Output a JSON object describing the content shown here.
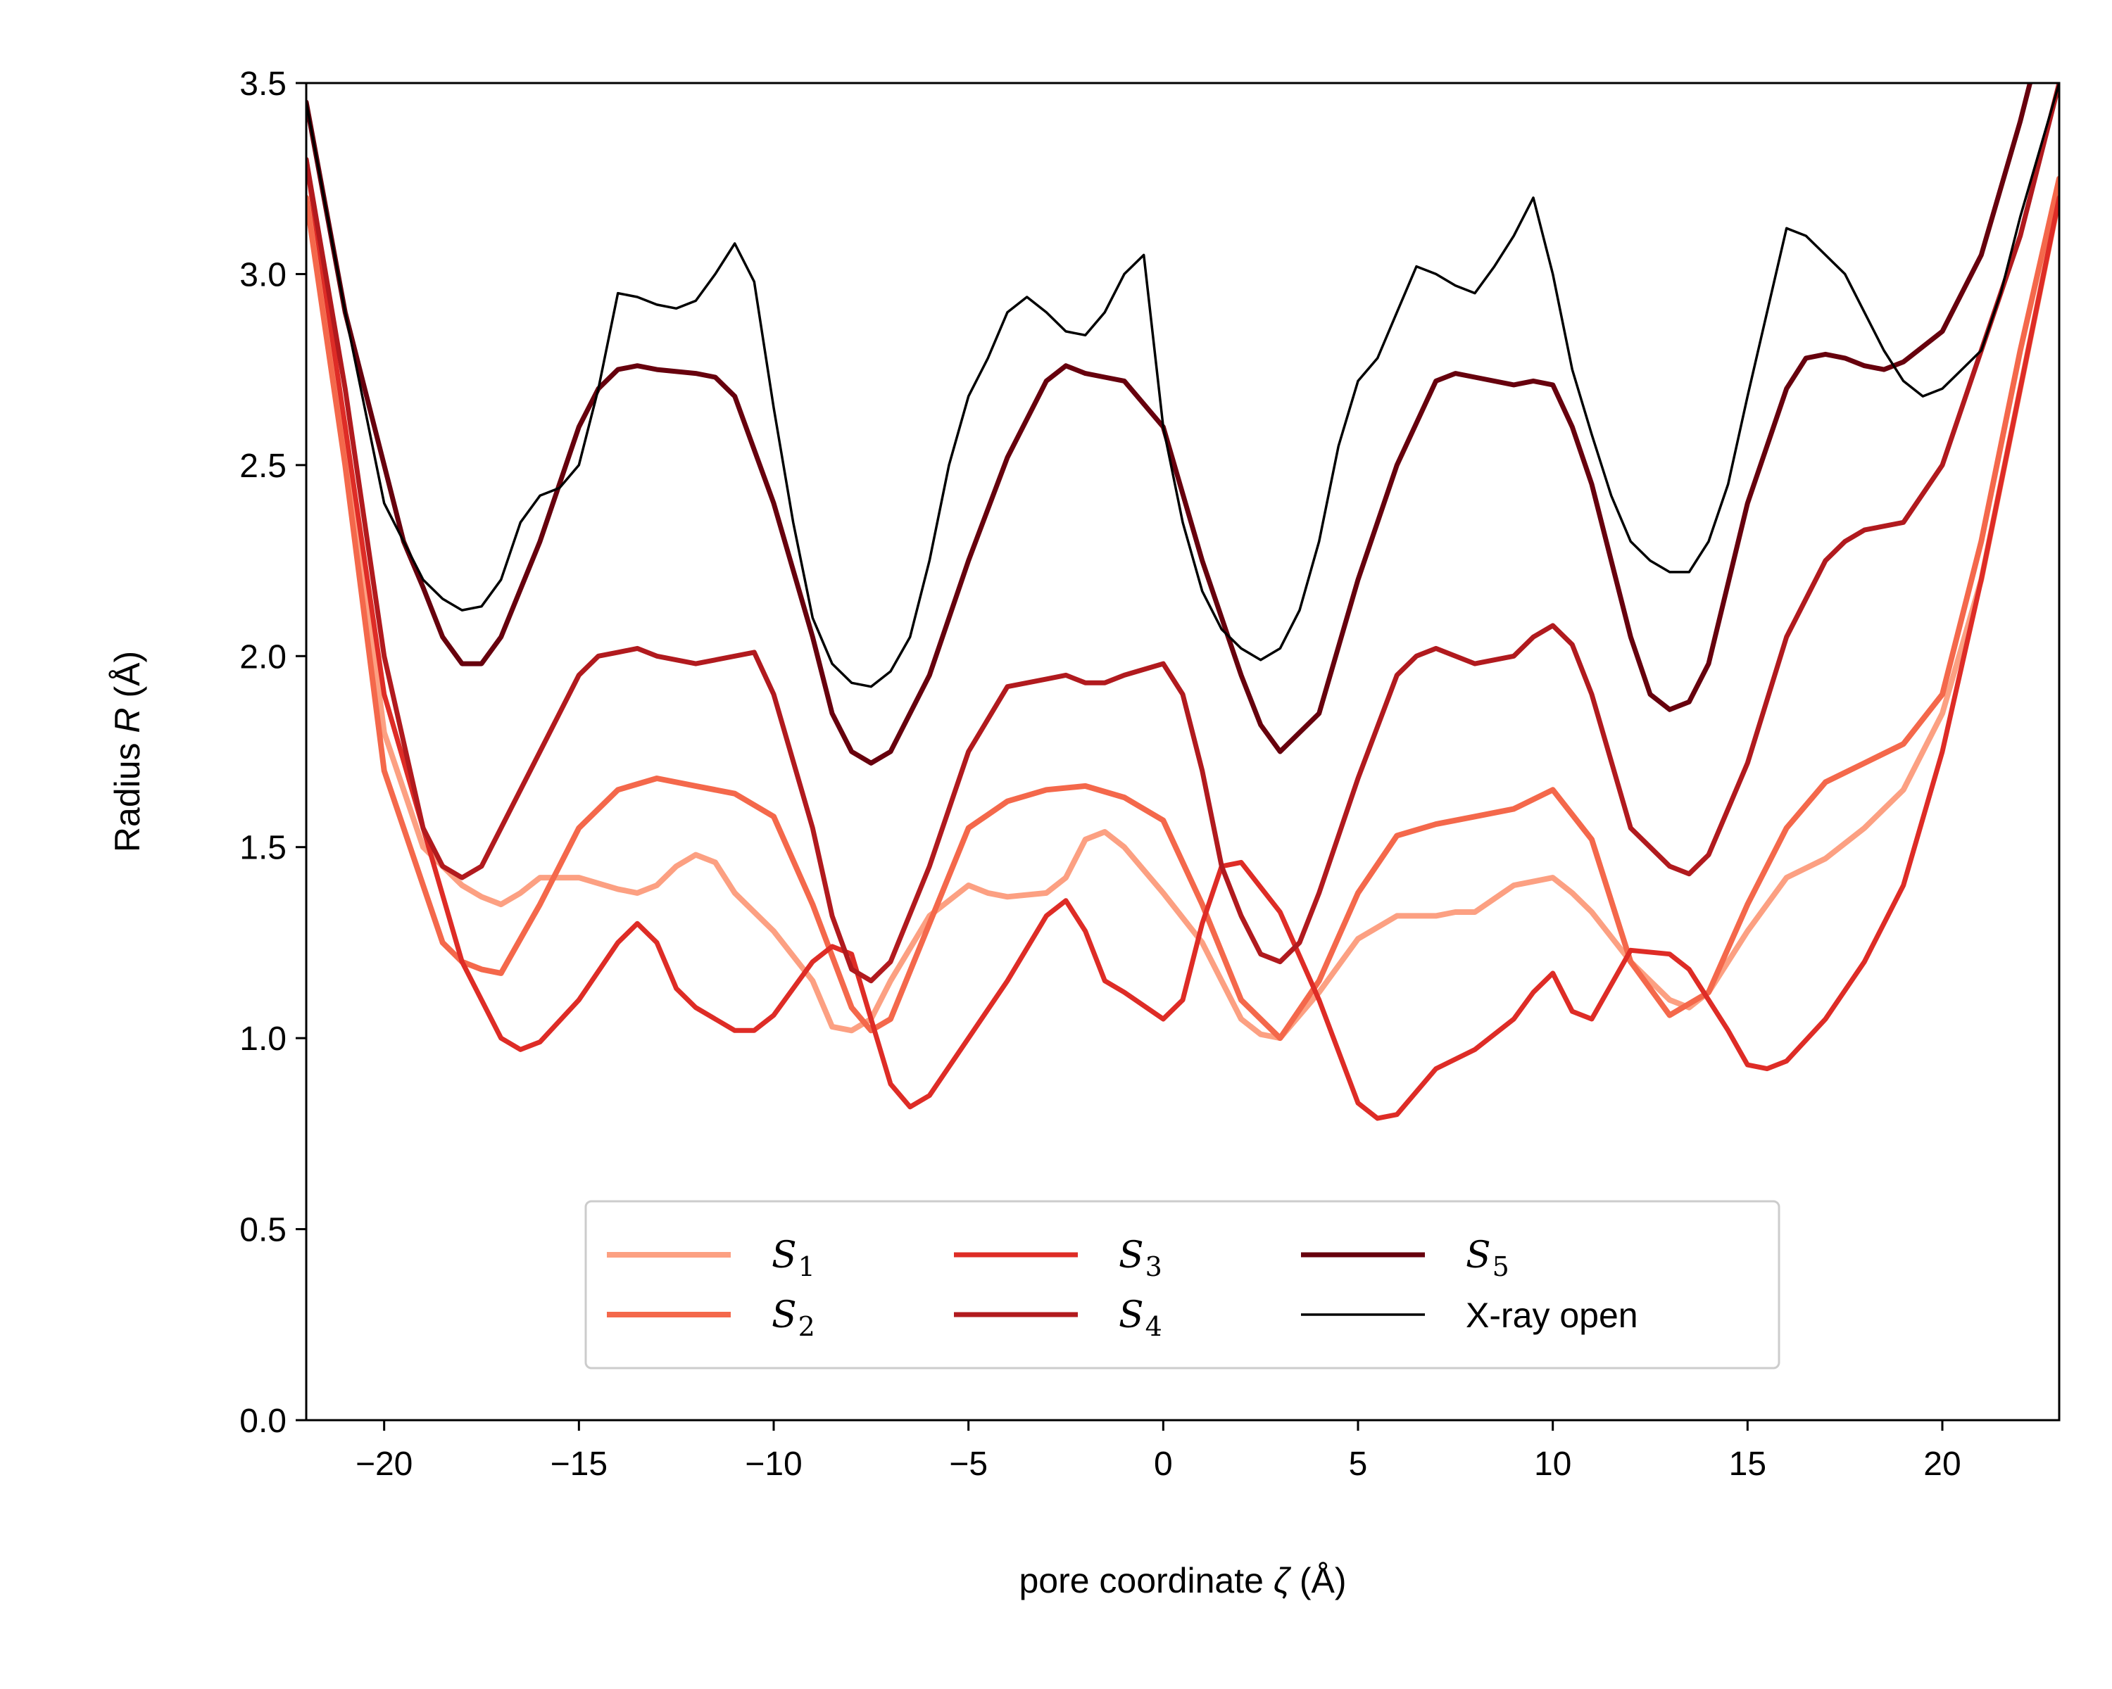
{
  "chart_data": {
    "type": "line",
    "xlabel": {
      "prefix": "pore coordinate ",
      "symbol": "ζ",
      "suffix": " (Å)"
    },
    "ylabel": {
      "prefix": "Radius ",
      "symbol": "R",
      "suffix": " (Å)"
    },
    "xlim": [
      -22,
      23
    ],
    "ylim": [
      0,
      3.5
    ],
    "xticks": [
      -20,
      -15,
      -10,
      -5,
      0,
      5,
      10,
      15,
      20
    ],
    "xtick_labels": [
      "−20",
      "−15",
      "−10",
      "−5",
      "0",
      "5",
      "10",
      "15",
      "20"
    ],
    "yticks": [
      0,
      0.5,
      1.0,
      1.5,
      2.0,
      2.5,
      3.0,
      3.5
    ],
    "ytick_labels": [
      "0.0",
      "0.5",
      "1.0",
      "1.5",
      "2.0",
      "2.5",
      "3.0",
      "3.5"
    ],
    "grid": false,
    "legend": {
      "placement": "lower-center",
      "columns": 3
    },
    "series": [
      {
        "name": "S1",
        "label_main": "S",
        "label_sub": "1",
        "color": "#fca082",
        "x": [
          -22,
          -21,
          -20,
          -19,
          -18,
          -17.5,
          -17,
          -16.5,
          -16,
          -15,
          -14,
          -13.5,
          -13,
          -12.5,
          -12,
          -11.5,
          -11,
          -10,
          -9,
          -8.5,
          -8,
          -7.5,
          -7,
          -6,
          -5,
          -4.5,
          -4,
          -3,
          -2.5,
          -2,
          -1.5,
          -1,
          0,
          1,
          1.5,
          2,
          2.5,
          3,
          4,
          5,
          6,
          7,
          7.5,
          8,
          9,
          10,
          10.5,
          11,
          12,
          13,
          13.5,
          14,
          15,
          16,
          17,
          18,
          19,
          20,
          21,
          22,
          23
        ],
        "y": [
          3.2,
          2.6,
          1.8,
          1.5,
          1.4,
          1.37,
          1.35,
          1.38,
          1.42,
          1.42,
          1.39,
          1.38,
          1.4,
          1.45,
          1.48,
          1.46,
          1.38,
          1.28,
          1.15,
          1.03,
          1.02,
          1.05,
          1.15,
          1.32,
          1.4,
          1.38,
          1.37,
          1.38,
          1.42,
          1.52,
          1.54,
          1.5,
          1.38,
          1.25,
          1.15,
          1.05,
          1.01,
          1.0,
          1.12,
          1.26,
          1.32,
          1.32,
          1.33,
          1.33,
          1.4,
          1.42,
          1.38,
          1.33,
          1.2,
          1.1,
          1.08,
          1.12,
          1.28,
          1.42,
          1.47,
          1.55,
          1.65,
          1.85,
          2.2,
          2.7,
          3.2
        ]
      },
      {
        "name": "S2",
        "label_main": "S",
        "label_sub": "2",
        "color": "#f4684b",
        "x": [
          -22,
          -21,
          -20,
          -19,
          -18.5,
          -18,
          -17.5,
          -17,
          -16,
          -15,
          -14,
          -13,
          -12,
          -11,
          -10,
          -9,
          -8,
          -7.5,
          -7,
          -6,
          -5,
          -4,
          -3,
          -2,
          -1,
          0,
          1,
          2,
          3,
          4,
          5,
          6,
          7,
          8,
          9,
          10,
          11,
          12,
          13,
          14,
          15,
          16,
          17,
          18,
          19,
          20,
          21,
          22,
          23
        ],
        "y": [
          3.2,
          2.5,
          1.7,
          1.4,
          1.25,
          1.2,
          1.18,
          1.17,
          1.35,
          1.55,
          1.65,
          1.68,
          1.66,
          1.64,
          1.58,
          1.35,
          1.08,
          1.02,
          1.05,
          1.3,
          1.55,
          1.62,
          1.65,
          1.66,
          1.63,
          1.57,
          1.35,
          1.1,
          1.0,
          1.15,
          1.38,
          1.53,
          1.56,
          1.58,
          1.6,
          1.65,
          1.52,
          1.2,
          1.06,
          1.12,
          1.35,
          1.55,
          1.67,
          1.72,
          1.77,
          1.9,
          2.3,
          2.8,
          3.25
        ]
      },
      {
        "name": "S3",
        "label_main": "S",
        "label_sub": "3",
        "color": "#de2c26",
        "x": [
          -22,
          -21,
          -20,
          -19,
          -18,
          -17,
          -16.5,
          -16,
          -15,
          -14,
          -13.5,
          -13,
          -12.5,
          -12,
          -11,
          -10.5,
          -10,
          -9,
          -8.5,
          -8,
          -7.5,
          -7,
          -6.5,
          -6,
          -5,
          -4,
          -3,
          -2.5,
          -2,
          -1.5,
          -1,
          0,
          0.5,
          1,
          1.5,
          2,
          3,
          4,
          5,
          5.5,
          6,
          7,
          8,
          9,
          9.5,
          10,
          10.5,
          11,
          12,
          13,
          13.5,
          14,
          14.5,
          15,
          15.5,
          16,
          17,
          18,
          19,
          20,
          21,
          22,
          23
        ],
        "y": [
          3.3,
          2.6,
          1.9,
          1.55,
          1.2,
          1.0,
          0.97,
          0.99,
          1.1,
          1.25,
          1.3,
          1.25,
          1.13,
          1.08,
          1.02,
          1.02,
          1.06,
          1.2,
          1.24,
          1.22,
          1.05,
          0.88,
          0.82,
          0.85,
          1.0,
          1.15,
          1.32,
          1.36,
          1.28,
          1.15,
          1.12,
          1.05,
          1.1,
          1.3,
          1.45,
          1.46,
          1.33,
          1.1,
          0.83,
          0.79,
          0.8,
          0.92,
          0.97,
          1.05,
          1.12,
          1.17,
          1.07,
          1.05,
          1.23,
          1.22,
          1.18,
          1.1,
          1.02,
          0.93,
          0.92,
          0.94,
          1.05,
          1.2,
          1.4,
          1.75,
          2.2,
          2.7,
          3.2
        ]
      },
      {
        "name": "S4",
        "label_main": "S",
        "label_sub": "4",
        "color": "#b11a1e",
        "x": [
          -22,
          -21,
          -20,
          -19,
          -18.5,
          -18,
          -17.5,
          -17,
          -16,
          -15,
          -14.5,
          -14,
          -13.5,
          -13,
          -12,
          -11,
          -10.5,
          -10,
          -9,
          -8.5,
          -8,
          -7.5,
          -7,
          -6,
          -5,
          -4,
          -3,
          -2.5,
          -2,
          -1.5,
          -1,
          0,
          0.5,
          1,
          1.5,
          2,
          2.5,
          3,
          3.5,
          4,
          5,
          6,
          6.5,
          7,
          7.5,
          8,
          9,
          9.5,
          10,
          10.5,
          11,
          12,
          13,
          13.5,
          14,
          14.5,
          15,
          16,
          17,
          17.5,
          18,
          19,
          20,
          21,
          22,
          23
        ],
        "y": [
          3.3,
          2.7,
          2.0,
          1.55,
          1.45,
          1.42,
          1.45,
          1.55,
          1.75,
          1.95,
          2.0,
          2.01,
          2.02,
          2.0,
          1.98,
          2.0,
          2.01,
          1.9,
          1.55,
          1.32,
          1.18,
          1.15,
          1.2,
          1.45,
          1.75,
          1.92,
          1.94,
          1.95,
          1.93,
          1.93,
          1.95,
          1.98,
          1.9,
          1.7,
          1.45,
          1.32,
          1.22,
          1.2,
          1.25,
          1.38,
          1.68,
          1.95,
          2.0,
          2.02,
          2.0,
          1.98,
          2.0,
          2.05,
          2.08,
          2.03,
          1.9,
          1.55,
          1.45,
          1.43,
          1.48,
          1.6,
          1.72,
          2.05,
          2.25,
          2.3,
          2.33,
          2.35,
          2.5,
          2.8,
          3.1,
          3.5
        ]
      },
      {
        "name": "S5",
        "label_main": "S",
        "label_sub": "5",
        "color": "#67000d",
        "x": [
          -22,
          -21,
          -20,
          -19.5,
          -19,
          -18.5,
          -18,
          -17.5,
          -17,
          -16,
          -15,
          -14.5,
          -14,
          -13.5,
          -13,
          -12,
          -11.5,
          -11,
          -10,
          -9,
          -8.5,
          -8,
          -7.5,
          -7,
          -6,
          -5,
          -4,
          -3,
          -2.5,
          -2,
          -1.5,
          -1,
          0,
          1,
          2,
          2.5,
          3,
          4,
          5,
          6,
          7,
          7.5,
          8,
          9,
          9.5,
          10,
          10.5,
          11,
          12,
          12.5,
          13,
          13.5,
          14,
          15,
          16,
          16.5,
          17,
          17.5,
          18,
          18.5,
          19,
          20,
          21,
          22,
          23
        ],
        "y": [
          3.45,
          2.9,
          2.5,
          2.3,
          2.18,
          2.05,
          1.98,
          1.98,
          2.05,
          2.3,
          2.6,
          2.7,
          2.75,
          2.76,
          2.75,
          2.74,
          2.73,
          2.68,
          2.4,
          2.05,
          1.85,
          1.75,
          1.72,
          1.75,
          1.95,
          2.25,
          2.52,
          2.72,
          2.76,
          2.74,
          2.73,
          2.72,
          2.6,
          2.25,
          1.95,
          1.82,
          1.75,
          1.85,
          2.2,
          2.5,
          2.72,
          2.74,
          2.73,
          2.71,
          2.72,
          2.71,
          2.6,
          2.45,
          2.05,
          1.9,
          1.86,
          1.88,
          1.98,
          2.4,
          2.7,
          2.78,
          2.79,
          2.78,
          2.76,
          2.75,
          2.77,
          2.85,
          3.05,
          3.4,
          3.8
        ]
      },
      {
        "name": "X-ray open",
        "label_main": "X-ray open",
        "label_sub": "",
        "color": "#000000",
        "x": [
          -22,
          -21,
          -20,
          -19,
          -18.5,
          -18,
          -17.5,
          -17,
          -16.5,
          -16,
          -15.5,
          -15,
          -14.5,
          -14,
          -13.5,
          -13,
          -12.5,
          -12,
          -11.5,
          -11,
          -10.5,
          -10,
          -9.5,
          -9,
          -8.5,
          -8,
          -7.5,
          -7,
          -6.5,
          -6,
          -5.5,
          -5,
          -4.5,
          -4,
          -3.5,
          -3,
          -2.5,
          -2,
          -1.5,
          -1,
          -0.5,
          0,
          0.5,
          1,
          1.5,
          2,
          2.5,
          3,
          3.5,
          4,
          4.5,
          5,
          5.5,
          6,
          6.5,
          7,
          7.5,
          8,
          8.5,
          9,
          9.5,
          10,
          10.5,
          11,
          11.5,
          12,
          12.5,
          13,
          13.5,
          14,
          14.5,
          15,
          15.5,
          16,
          16.5,
          17,
          17.5,
          18,
          18.5,
          19,
          19.5,
          20,
          20.5,
          21,
          21.5,
          22,
          23
        ],
        "y": [
          3.45,
          2.9,
          2.4,
          2.2,
          2.15,
          2.12,
          2.13,
          2.2,
          2.35,
          2.42,
          2.44,
          2.5,
          2.7,
          2.95,
          2.94,
          2.92,
          2.91,
          2.93,
          3.0,
          3.08,
          2.98,
          2.65,
          2.35,
          2.1,
          1.98,
          1.93,
          1.92,
          1.96,
          2.05,
          2.25,
          2.5,
          2.68,
          2.78,
          2.9,
          2.94,
          2.9,
          2.85,
          2.84,
          2.9,
          3.0,
          3.05,
          2.6,
          2.35,
          2.17,
          2.07,
          2.02,
          1.99,
          2.02,
          2.12,
          2.3,
          2.55,
          2.72,
          2.78,
          2.9,
          3.02,
          3.0,
          2.97,
          2.95,
          3.02,
          3.1,
          3.2,
          3.0,
          2.75,
          2.58,
          2.42,
          2.3,
          2.25,
          2.22,
          2.22,
          2.3,
          2.45,
          2.68,
          2.9,
          3.12,
          3.1,
          3.05,
          3.0,
          2.9,
          2.8,
          2.72,
          2.68,
          2.7,
          2.75,
          2.8,
          2.95,
          3.15,
          3.5
        ]
      }
    ]
  }
}
